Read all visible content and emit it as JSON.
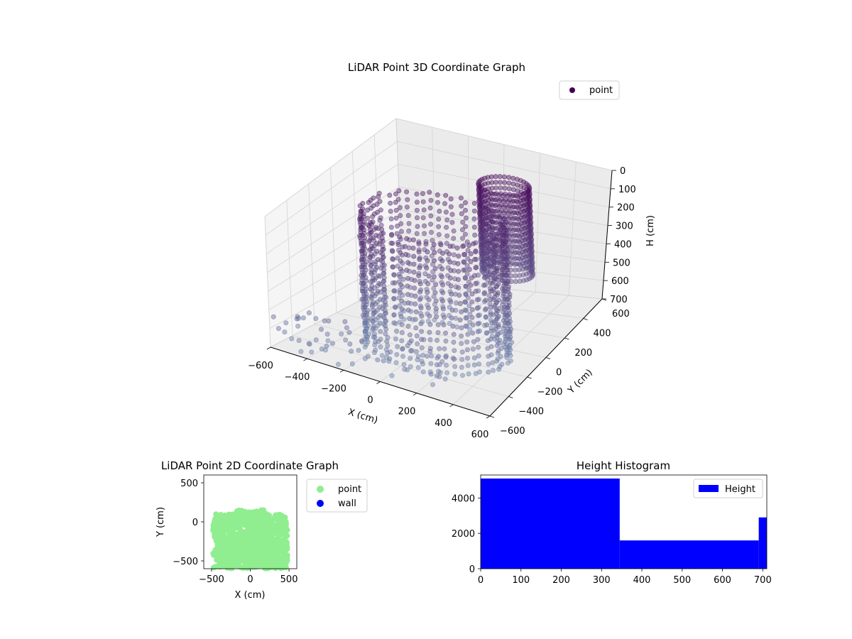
{
  "chart_data": [
    {
      "type": "scatter",
      "projection": "3d",
      "title": "LiDAR Point 3D Coordinate Graph",
      "xlabel": "X (cm)",
      "ylabel": "Y (cm)",
      "zlabel": "H (cm)",
      "xlim": [
        -600,
        600
      ],
      "ylim": [
        -600,
        600
      ],
      "zlim": [
        700,
        0
      ],
      "xticks": [
        "−600",
        "−400",
        "−200",
        "0",
        "200",
        "400",
        "600"
      ],
      "yticks": [
        "−600",
        "−400",
        "−200",
        "0",
        "200",
        "400",
        "600"
      ],
      "zticks": [
        "0",
        "100",
        "200",
        "300",
        "400",
        "500",
        "600",
        "700"
      ],
      "grid": true,
      "legend": {
        "position": "top-right",
        "entries": [
          {
            "label": "point",
            "color": "#440154"
          }
        ]
      },
      "colormap": "viridis (dark purple at top to blue-grey lower)",
      "series": [
        {
          "name": "point",
          "color": "#440154",
          "shape": "rings of points around a circular scan pattern, dense vertical columns"
        }
      ]
    },
    {
      "type": "scatter",
      "title": "LiDAR Point 2D Coordinate Graph",
      "xlabel": "X (cm)",
      "ylabel": "Y (cm)",
      "xlim": [
        -600,
        600
      ],
      "ylim": [
        -600,
        600
      ],
      "xticks": [
        "−500",
        "0",
        "500"
      ],
      "yticks": [
        "−500",
        "0",
        "500"
      ],
      "legend": {
        "position": "outside-right",
        "entries": [
          {
            "label": "point",
            "color": "#90ee90"
          },
          {
            "label": "wall",
            "color": "#0000ff"
          }
        ]
      },
      "series": [
        {
          "name": "point",
          "color": "#90ee90",
          "x_range": [
            -480,
            480
          ],
          "y_range": [
            -600,
            150
          ]
        },
        {
          "name": "wall",
          "color": "#0000ff",
          "points": []
        }
      ]
    },
    {
      "type": "bar",
      "subtype": "histogram",
      "title": "Height Histogram",
      "xlabel": "",
      "ylabel": "",
      "xlim": [
        0,
        710
      ],
      "ylim": [
        0,
        5300
      ],
      "xticks": [
        "0",
        "100",
        "200",
        "300",
        "400",
        "500",
        "600",
        "700"
      ],
      "yticks": [
        "0",
        "2000",
        "4000"
      ],
      "legend": {
        "position": "top-right",
        "entries": [
          {
            "label": "Height",
            "color": "#0000ff"
          }
        ]
      },
      "bins": [
        {
          "start": 0,
          "end": 345,
          "count": 5100
        },
        {
          "start": 345,
          "end": 690,
          "count": 1600
        },
        {
          "start": 690,
          "end": 710,
          "count": 2900
        }
      ],
      "color": "#0000ff"
    }
  ]
}
